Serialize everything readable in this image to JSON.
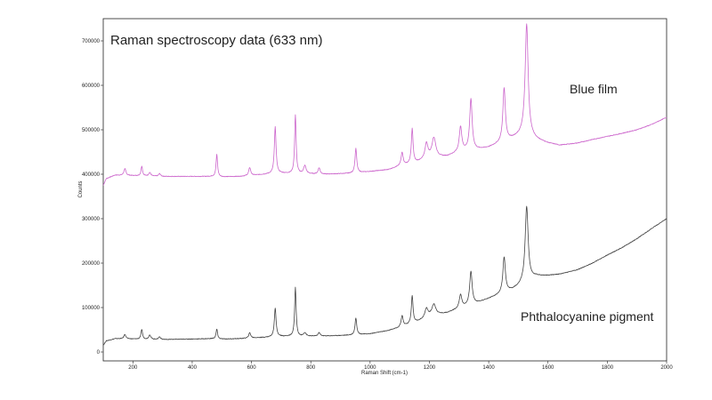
{
  "chart_data": {
    "type": "line",
    "title": "Raman spectroscopy data (633 nm)",
    "xlabel": "Raman Shift (cm-1)",
    "ylabel": "Counts",
    "xlim": [
      100,
      2000
    ],
    "ylim": [
      -20000,
      750000
    ],
    "grid": false,
    "x_ticks": [
      200,
      400,
      600,
      800,
      1000,
      1200,
      1400,
      1600,
      1800,
      2000
    ],
    "y_ticks": [
      0,
      100000,
      200000,
      300000,
      400000,
      500000,
      600000,
      700000
    ],
    "annotations": [
      "Blue film",
      "Phthalocyanine pigment"
    ],
    "series": [
      {
        "name": "Blue film",
        "color": "#cc66cc",
        "baseline": [
          [
            100,
            375000
          ],
          [
            110,
            390000
          ],
          [
            140,
            398000
          ],
          [
            300,
            395000
          ],
          [
            470,
            395000
          ],
          [
            500,
            394000
          ],
          [
            560,
            395000
          ],
          [
            650,
            400000
          ],
          [
            700,
            402000
          ],
          [
            760,
            401000
          ],
          [
            850,
            400000
          ],
          [
            940,
            402000
          ],
          [
            1000,
            406000
          ],
          [
            1060,
            410000
          ],
          [
            1100,
            418000
          ],
          [
            1150,
            425000
          ],
          [
            1200,
            435000
          ],
          [
            1260,
            440000
          ],
          [
            1310,
            452000
          ],
          [
            1360,
            455000
          ],
          [
            1400,
            460000
          ],
          [
            1440,
            470000
          ],
          [
            1480,
            480000
          ],
          [
            1520,
            490000
          ],
          [
            1560,
            478000
          ],
          [
            1600,
            470000
          ],
          [
            1640,
            465000
          ],
          [
            1700,
            470000
          ],
          [
            1750,
            478000
          ],
          [
            1800,
            485000
          ],
          [
            1850,
            492000
          ],
          [
            1900,
            500000
          ],
          [
            1950,
            512000
          ],
          [
            2000,
            528000
          ]
        ],
        "peaks": [
          [
            173,
            15000,
            4
          ],
          [
            230,
            22000,
            3
          ],
          [
            257,
            8000,
            4
          ],
          [
            290,
            6000,
            4
          ],
          [
            483,
            50000,
            3
          ],
          [
            594,
            18000,
            4
          ],
          [
            680,
            105000,
            3.5
          ],
          [
            748,
            132000,
            3
          ],
          [
            780,
            18000,
            5
          ],
          [
            828,
            14000,
            4
          ],
          [
            952,
            55000,
            3.5
          ],
          [
            1108,
            30000,
            4
          ],
          [
            1142,
            78000,
            3.5
          ],
          [
            1190,
            35000,
            6
          ],
          [
            1215,
            45000,
            8
          ],
          [
            1305,
            55000,
            5
          ],
          [
            1340,
            115000,
            5
          ],
          [
            1452,
            120000,
            5
          ],
          [
            1528,
            250000,
            6
          ]
        ]
      },
      {
        "name": "Phthalocyanine pigment",
        "color": "#444444",
        "baseline": [
          [
            100,
            15000
          ],
          [
            110,
            25000
          ],
          [
            140,
            30000
          ],
          [
            300,
            28000
          ],
          [
            470,
            30000
          ],
          [
            500,
            29000
          ],
          [
            560,
            30000
          ],
          [
            650,
            33000
          ],
          [
            700,
            35000
          ],
          [
            760,
            35000
          ],
          [
            850,
            36000
          ],
          [
            940,
            38000
          ],
          [
            1000,
            41000
          ],
          [
            1060,
            48000
          ],
          [
            1100,
            55000
          ],
          [
            1150,
            65000
          ],
          [
            1200,
            80000
          ],
          [
            1260,
            88000
          ],
          [
            1310,
            100000
          ],
          [
            1360,
            110000
          ],
          [
            1400,
            120000
          ],
          [
            1440,
            130000
          ],
          [
            1480,
            140000
          ],
          [
            1520,
            155000
          ],
          [
            1560,
            170000
          ],
          [
            1600,
            172000
          ],
          [
            1640,
            175000
          ],
          [
            1700,
            185000
          ],
          [
            1750,
            200000
          ],
          [
            1800,
            218000
          ],
          [
            1850,
            235000
          ],
          [
            1900,
            255000
          ],
          [
            1950,
            278000
          ],
          [
            2000,
            300000
          ]
        ],
        "peaks": [
          [
            173,
            10000,
            4
          ],
          [
            230,
            22000,
            3
          ],
          [
            257,
            10000,
            4
          ],
          [
            290,
            6000,
            4
          ],
          [
            483,
            22000,
            3
          ],
          [
            594,
            12000,
            4
          ],
          [
            680,
            65000,
            3.5
          ],
          [
            748,
            110000,
            3
          ],
          [
            780,
            8000,
            5
          ],
          [
            828,
            8000,
            4
          ],
          [
            952,
            38000,
            3.5
          ],
          [
            1108,
            25000,
            4
          ],
          [
            1142,
            63000,
            3.5
          ],
          [
            1190,
            20000,
            6
          ],
          [
            1215,
            25000,
            8
          ],
          [
            1305,
            30000,
            5
          ],
          [
            1340,
            75000,
            5
          ],
          [
            1452,
            80000,
            5
          ],
          [
            1528,
            170000,
            6
          ]
        ]
      }
    ]
  }
}
